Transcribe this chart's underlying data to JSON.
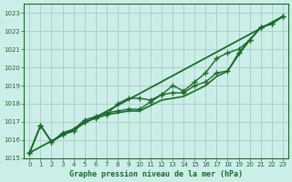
{
  "title": "Graphe pression niveau de la mer (hPa)",
  "background_color": "#cceee8",
  "grid_color": "#aaccc4",
  "line_color": "#1a6b2a",
  "xlim": [
    -0.5,
    23.5
  ],
  "ylim": [
    1015.0,
    1023.5
  ],
  "yticks": [
    1015,
    1016,
    1017,
    1018,
    1019,
    1020,
    1021,
    1022,
    1023
  ],
  "xticks": [
    0,
    1,
    2,
    3,
    4,
    5,
    6,
    7,
    8,
    9,
    10,
    11,
    12,
    13,
    14,
    15,
    16,
    17,
    18,
    19,
    20,
    21,
    22,
    23
  ],
  "series": [
    {
      "x": [
        0,
        1,
        2,
        3,
        4,
        5,
        6,
        7,
        8,
        9,
        10,
        11,
        12,
        13,
        14,
        15,
        16,
        17,
        18,
        19,
        20,
        21,
        22,
        23
      ],
      "y": [
        1015.3,
        1016.8,
        1015.9,
        1016.4,
        1016.6,
        1017.1,
        1017.3,
        1017.5,
        1017.6,
        1017.7,
        1017.7,
        1018.1,
        1018.5,
        1018.6,
        1018.6,
        1019.0,
        1019.2,
        1019.7,
        1019.8,
        1020.8,
        1021.5,
        1022.2,
        1022.4,
        1022.8
      ],
      "marker": "+",
      "markersize": 4,
      "linewidth": 1.0
    },
    {
      "x": [
        0,
        1,
        2,
        3,
        4,
        5,
        6,
        7,
        8,
        9,
        10,
        11,
        12,
        13,
        14,
        15,
        16,
        17,
        18,
        19,
        20,
        21,
        22,
        23
      ],
      "y": [
        1015.3,
        1016.8,
        1015.9,
        1016.3,
        1016.5,
        1017.0,
        1017.2,
        1017.4,
        1017.5,
        1017.6,
        1017.6,
        1017.9,
        1018.2,
        1018.3,
        1018.4,
        1018.7,
        1019.0,
        1019.5,
        1019.8,
        1020.7,
        1021.5,
        1022.2,
        1022.4,
        1022.8
      ],
      "marker": null,
      "markersize": 0,
      "linewidth": 1.2
    },
    {
      "x": [
        0,
        1,
        2,
        3,
        4,
        5,
        6,
        7,
        8,
        9,
        10,
        11,
        12,
        13,
        14,
        15,
        16,
        17,
        18,
        19,
        20,
        21,
        22,
        23
      ],
      "y": [
        1015.3,
        1016.8,
        1015.9,
        1016.3,
        1016.5,
        1017.0,
        1017.2,
        1017.4,
        1018.0,
        1018.3,
        1018.3,
        1018.2,
        1018.5,
        1019.0,
        1018.7,
        1019.2,
        1019.7,
        1020.5,
        1020.8,
        1021.0,
        1021.5,
        1022.2,
        1022.4,
        1022.8
      ],
      "marker": "+",
      "markersize": 4,
      "linewidth": 1.0
    },
    {
      "x": [
        0,
        23
      ],
      "y": [
        1015.3,
        1022.8
      ],
      "marker": null,
      "markersize": 0,
      "linewidth": 1.3
    }
  ]
}
